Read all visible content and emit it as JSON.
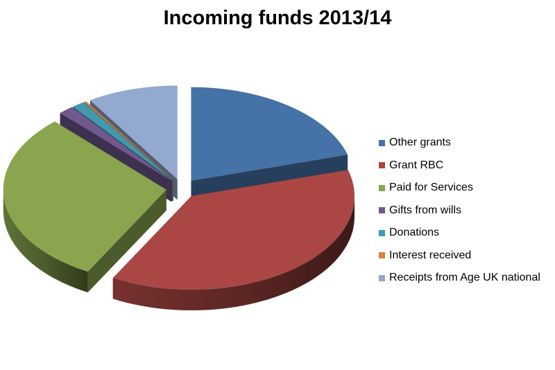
{
  "chart_data": {
    "type": "pie",
    "title": "Incoming funds 2013/14",
    "legend_position": "right",
    "slices": [
      {
        "label": "Other grants",
        "value": 20.5,
        "color": "#4572A7"
      },
      {
        "label": "Grant RBC",
        "value": 37.5,
        "color": "#AA4643"
      },
      {
        "label": "Paid for Services",
        "value": 30,
        "color": "#89A54E"
      },
      {
        "label": "Gifts from wills",
        "value": 1.5,
        "color": "#71588F"
      },
      {
        "label": "Donations",
        "value": 1.3,
        "color": "#4198AF"
      },
      {
        "label": "Interest received",
        "value": 0.2,
        "color": "#DB843D"
      },
      {
        "label": "Receipts from Age UK national",
        "value": 9,
        "color": "#93A9CF"
      }
    ]
  }
}
